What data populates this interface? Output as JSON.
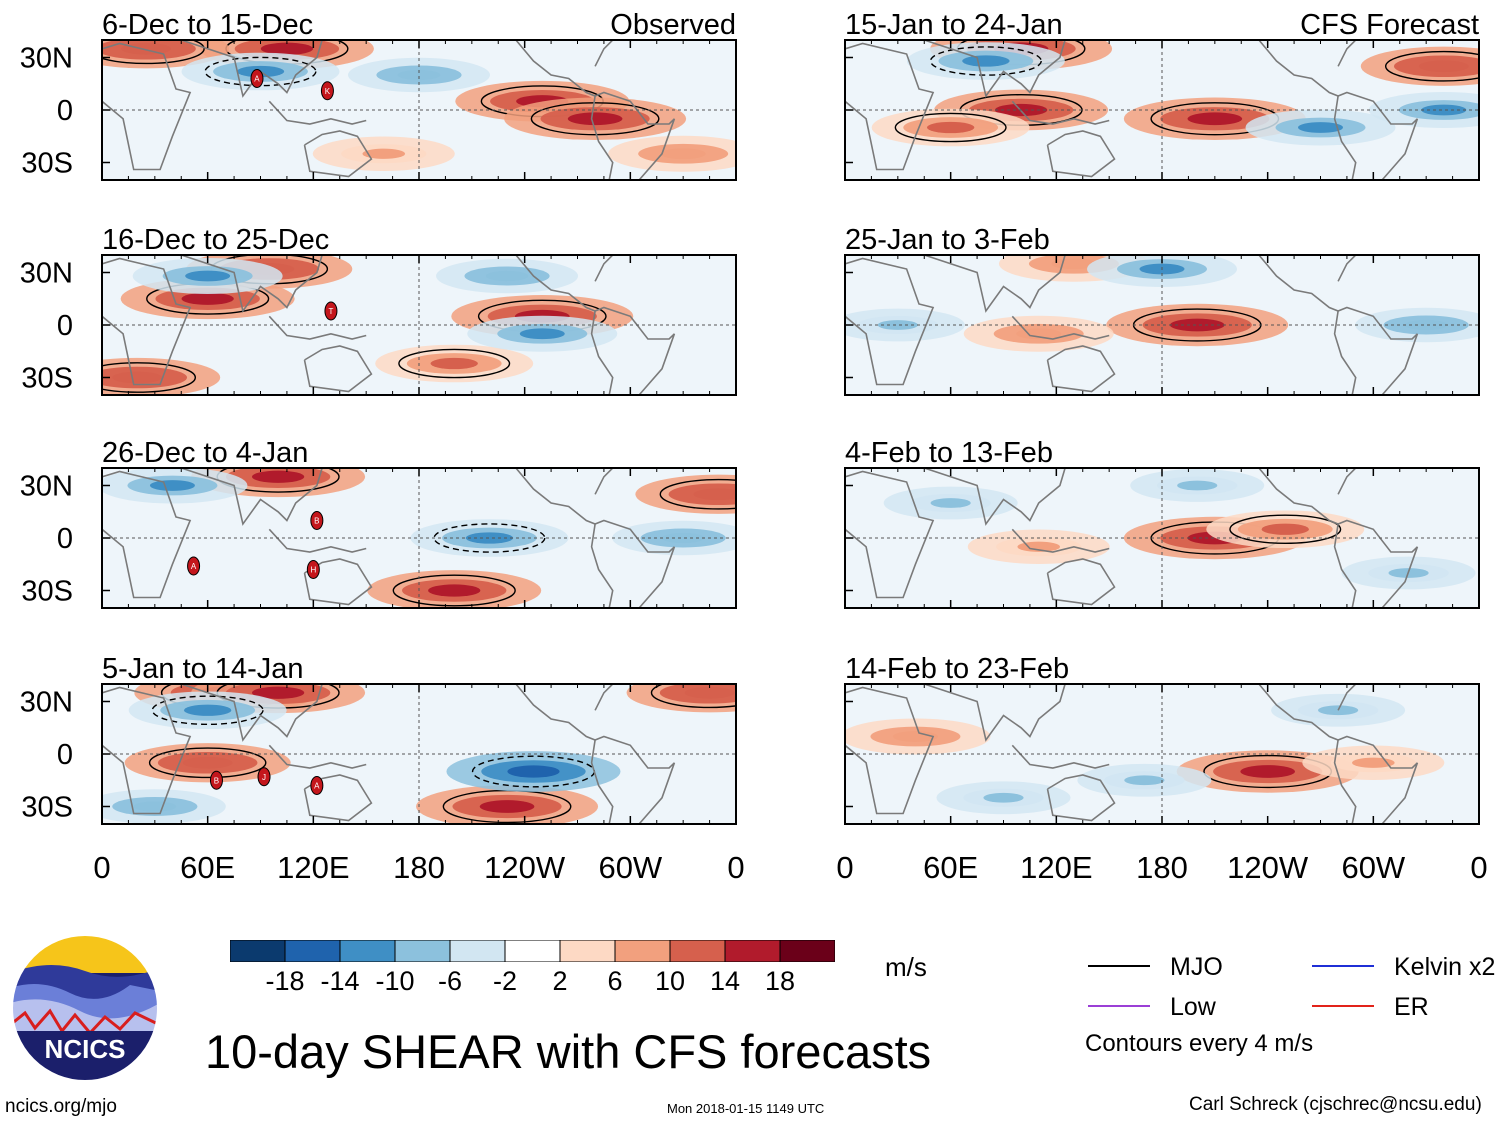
{
  "title": "10-day SHEAR with CFS forecasts",
  "site": "ncics.org/mjo",
  "timestamp": "Mon 2018-01-15 1149 UTC",
  "author": "Carl Schreck (cjschrec@ncsu.edu)",
  "logo_text": "NCICS",
  "units": "m/s",
  "contour_note": "Contours every 4 m/s",
  "column_headers": {
    "observed": "Observed",
    "forecast": "CFS Forecast"
  },
  "legend": [
    {
      "label": "MJO",
      "color": "#000000"
    },
    {
      "label": "Kelvin x2",
      "color": "#1f2fd6"
    },
    {
      "label": "Low",
      "color": "#9b3fd6"
    },
    {
      "label": "ER",
      "color": "#e2231a"
    }
  ],
  "colorbar": {
    "labels": [
      "-18",
      "-14",
      "-10",
      "-6",
      "-2",
      "2",
      "6",
      "10",
      "14",
      "18"
    ],
    "colors": [
      "#0b3a6e",
      "#1f63ad",
      "#3f8fc5",
      "#8cc1dd",
      "#d2e6f2",
      "#ffffff",
      "#fdd9c4",
      "#f2a07e",
      "#d6604d",
      "#b11b2c",
      "#6b0019"
    ]
  },
  "chart_data": {
    "type": "heatmap",
    "variable": "10-day wind shear anomaly (m/s)",
    "x_tick_labels": [
      "0",
      "60E",
      "120E",
      "180",
      "120W",
      "60W",
      "0"
    ],
    "y_tick_labels": [
      "30N",
      "0",
      "30S"
    ],
    "xlim": [
      0,
      360
    ],
    "ylim": [
      -40,
      40
    ],
    "panels": [
      {
        "period": "6-Dec to 15-Dec",
        "source": "Observed",
        "storms": [
          {
            "letter": "A",
            "lon": 88,
            "lat": 18
          },
          {
            "letter": "K",
            "lon": 128,
            "lat": 11
          }
        ],
        "anomalies": [
          {
            "lon": 105,
            "lat": 35,
            "v": 16
          },
          {
            "lon": 25,
            "lat": 35,
            "v": 14
          },
          {
            "lon": 250,
            "lat": 5,
            "v": 16
          },
          {
            "lon": 280,
            "lat": -5,
            "v": 18
          },
          {
            "lon": 160,
            "lat": -25,
            "v": 8
          },
          {
            "lon": 90,
            "lat": 22,
            "v": -12
          },
          {
            "lon": 180,
            "lat": 20,
            "v": -8
          },
          {
            "lon": 330,
            "lat": -25,
            "v": 10
          }
        ]
      },
      {
        "period": "16-Dec to 25-Dec",
        "source": "Observed",
        "storms": [
          {
            "letter": "T",
            "lon": 130,
            "lat": 8
          }
        ],
        "anomalies": [
          {
            "lon": 60,
            "lat": 15,
            "v": 16
          },
          {
            "lon": 95,
            "lat": 32,
            "v": 14
          },
          {
            "lon": 250,
            "lat": 5,
            "v": 18
          },
          {
            "lon": 20,
            "lat": -30,
            "v": 14
          },
          {
            "lon": 200,
            "lat": -22,
            "v": 12
          },
          {
            "lon": 60,
            "lat": 28,
            "v": -10
          },
          {
            "lon": 230,
            "lat": 28,
            "v": -8
          },
          {
            "lon": 250,
            "lat": -5,
            "v": -10
          }
        ]
      },
      {
        "period": "26-Dec to 4-Jan",
        "source": "Observed",
        "storms": [
          {
            "letter": "B",
            "lon": 122,
            "lat": 10
          },
          {
            "lon": 52,
            "lat": -16,
            "letter": "A"
          },
          {
            "letter": "H",
            "lon": 120,
            "lat": -18
          }
        ],
        "anomalies": [
          {
            "lon": 100,
            "lat": 35,
            "v": 16
          },
          {
            "lon": 350,
            "lat": 25,
            "v": 14
          },
          {
            "lon": 200,
            "lat": -30,
            "v": 16
          },
          {
            "lon": 40,
            "lat": 30,
            "v": -10
          },
          {
            "lon": 220,
            "lat": 0,
            "v": -12
          },
          {
            "lon": 330,
            "lat": 0,
            "v": -8
          }
        ]
      },
      {
        "period": "5-Jan to 14-Jan",
        "source": "Observed",
        "storms": [
          {
            "letter": "B",
            "lon": 65,
            "lat": -15
          },
          {
            "letter": "J",
            "lon": 92,
            "lat": -13
          },
          {
            "letter": "A",
            "lon": 122,
            "lat": -18
          }
        ],
        "anomalies": [
          {
            "lon": 70,
            "lat": 35,
            "v": 18
          },
          {
            "lon": 100,
            "lat": 35,
            "v": 16
          },
          {
            "lon": 345,
            "lat": 35,
            "v": 14
          },
          {
            "lon": 60,
            "lat": -5,
            "v": 14
          },
          {
            "lon": 230,
            "lat": -30,
            "v": 18
          },
          {
            "lon": 245,
            "lat": -10,
            "v": -16
          },
          {
            "lon": 60,
            "lat": 25,
            "v": -12
          },
          {
            "lon": 30,
            "lat": -30,
            "v": -8
          }
        ]
      },
      {
        "period": "15-Jan to 24-Jan",
        "source": "CFS Forecast",
        "storms": [],
        "anomalies": [
          {
            "lon": 100,
            "lat": 35,
            "v": 18
          },
          {
            "lon": 100,
            "lat": 0,
            "v": 16
          },
          {
            "lon": 210,
            "lat": -5,
            "v": 18
          },
          {
            "lon": 340,
            "lat": 25,
            "v": 14
          },
          {
            "lon": 60,
            "lat": -10,
            "v": 12
          },
          {
            "lon": 80,
            "lat": 28,
            "v": -12
          },
          {
            "lon": 270,
            "lat": -10,
            "v": -10
          },
          {
            "lon": 340,
            "lat": 0,
            "v": -10
          }
        ]
      },
      {
        "period": "25-Jan to 3-Feb",
        "source": "CFS Forecast",
        "storms": [],
        "anomalies": [
          {
            "lon": 200,
            "lat": 0,
            "v": 18
          },
          {
            "lon": 110,
            "lat": -5,
            "v": 10
          },
          {
            "lon": 130,
            "lat": 35,
            "v": 10
          },
          {
            "lon": 180,
            "lat": 32,
            "v": -10
          },
          {
            "lon": 30,
            "lat": 0,
            "v": -6
          },
          {
            "lon": 330,
            "lat": 0,
            "v": -8
          }
        ]
      },
      {
        "period": "4-Feb to 13-Feb",
        "source": "CFS Forecast",
        "storms": [],
        "anomalies": [
          {
            "lon": 210,
            "lat": 0,
            "v": 18
          },
          {
            "lon": 250,
            "lat": 5,
            "v": 12
          },
          {
            "lon": 110,
            "lat": -5,
            "v": 8
          },
          {
            "lon": 60,
            "lat": 20,
            "v": -6
          },
          {
            "lon": 200,
            "lat": 30,
            "v": -6
          },
          {
            "lon": 320,
            "lat": -20,
            "v": -6
          }
        ]
      },
      {
        "period": "14-Feb to 23-Feb",
        "source": "CFS Forecast",
        "storms": [],
        "anomalies": [
          {
            "lon": 240,
            "lat": -10,
            "v": 18
          },
          {
            "lon": 40,
            "lat": 10,
            "v": 10
          },
          {
            "lon": 300,
            "lat": -5,
            "v": 8
          },
          {
            "lon": 90,
            "lat": -25,
            "v": -6
          },
          {
            "lon": 170,
            "lat": -15,
            "v": -6
          },
          {
            "lon": 280,
            "lat": 25,
            "v": -6
          }
        ]
      }
    ]
  }
}
